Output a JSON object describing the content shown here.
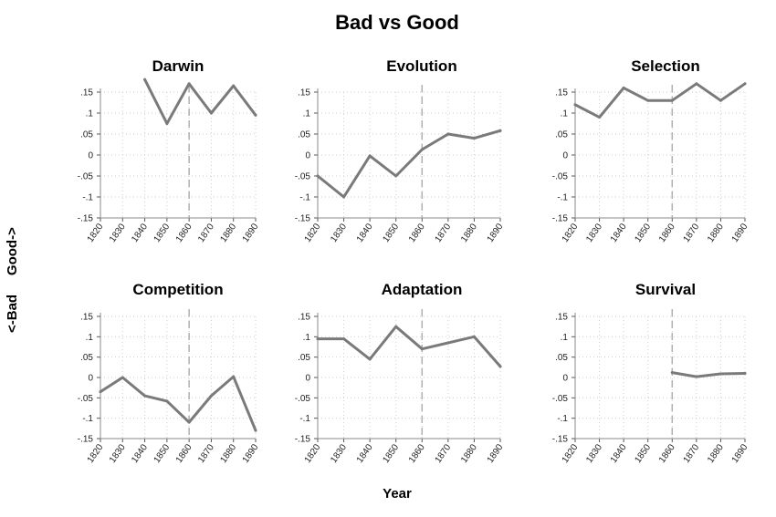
{
  "title": "Bad vs Good",
  "ylabel": "<-Bad     Good->",
  "xlabel": "Year",
  "chart_data": [
    {
      "type": "line",
      "title": "Darwin",
      "x": [
        1840,
        1850,
        1860,
        1870,
        1880,
        1890
      ],
      "values": [
        0.18,
        0.075,
        0.17,
        0.1,
        0.165,
        0.095
      ],
      "xticks": [
        "1820",
        "1830",
        "1840",
        "1850",
        "1860",
        "1870",
        "1880",
        "1890"
      ],
      "yticks": [
        ".15",
        ".1",
        ".05",
        "0",
        "-.05",
        "-.1",
        "-.15"
      ],
      "yrange": [
        -0.15,
        0.15
      ],
      "ylim": [
        -0.15,
        0.18
      ],
      "dashed_vline": 1860
    },
    {
      "type": "line",
      "title": "Evolution",
      "x": [
        1820,
        1830,
        1840,
        1850,
        1860,
        1870,
        1880,
        1890
      ],
      "values": [
        -0.05,
        -0.1,
        -0.002,
        -0.05,
        0.013,
        0.05,
        0.04,
        0.058
      ],
      "xticks": [
        "1820",
        "1830",
        "1840",
        "1850",
        "1860",
        "1870",
        "1880",
        "1890"
      ],
      "yticks": [
        ".15",
        ".1",
        ".05",
        "0",
        "-.05",
        "-.1",
        "-.15"
      ],
      "yrange": [
        -0.15,
        0.15
      ],
      "ylim": [
        -0.15,
        0.15
      ],
      "dashed_vline": 1860
    },
    {
      "type": "line",
      "title": "Selection",
      "x": [
        1820,
        1830,
        1840,
        1850,
        1860,
        1870,
        1880,
        1890
      ],
      "values": [
        0.12,
        0.09,
        0.16,
        0.13,
        0.13,
        0.17,
        0.13,
        0.17
      ],
      "xticks": [
        "1820",
        "1830",
        "1840",
        "1850",
        "1860",
        "1870",
        "1880",
        "1890"
      ],
      "yticks": [
        ".15",
        ".1",
        ".05",
        "0",
        "-.05",
        "-.1",
        "-.15"
      ],
      "yrange": [
        -0.15,
        0.15
      ],
      "ylim": [
        -0.15,
        0.175
      ],
      "dashed_vline": 1860
    },
    {
      "type": "line",
      "title": "Competition",
      "x": [
        1820,
        1830,
        1840,
        1850,
        1860,
        1870,
        1880,
        1890
      ],
      "values": [
        -0.035,
        0.0,
        -0.045,
        -0.058,
        -0.11,
        -0.045,
        0.002,
        -0.13
      ],
      "xticks": [
        "1820",
        "1830",
        "1840",
        "1850",
        "1860",
        "1870",
        "1880",
        "1890"
      ],
      "yticks": [
        ".15",
        ".1",
        ".05",
        "0",
        "-.05",
        "-.1",
        "-.15"
      ],
      "yrange": [
        -0.15,
        0.15
      ],
      "ylim": [
        -0.15,
        0.15
      ],
      "dashed_vline": 1860
    },
    {
      "type": "line",
      "title": "Adaptation",
      "x": [
        1820,
        1830,
        1840,
        1850,
        1860,
        1870,
        1880,
        1890
      ],
      "values": [
        0.095,
        0.095,
        0.045,
        0.125,
        0.07,
        0.085,
        0.1,
        0.027
      ],
      "xticks": [
        "1820",
        "1830",
        "1840",
        "1850",
        "1860",
        "1870",
        "1880",
        "1890"
      ],
      "yticks": [
        ".15",
        ".1",
        ".05",
        "0",
        "-.05",
        "-.1",
        "-.15"
      ],
      "yrange": [
        -0.15,
        0.15
      ],
      "ylim": [
        -0.15,
        0.15
      ],
      "dashed_vline": 1860
    },
    {
      "type": "line",
      "title": "Survival",
      "x": [
        1860,
        1870,
        1880,
        1890
      ],
      "values": [
        0.012,
        0.002,
        0.009,
        0.01
      ],
      "xticks": [
        "1820",
        "1830",
        "1840",
        "1850",
        "1860",
        "1870",
        "1880",
        "1890"
      ],
      "yticks": [
        ".15",
        ".1",
        ".05",
        "0",
        "-.05",
        "-.1",
        "-.15"
      ],
      "yrange": [
        -0.15,
        0.15
      ],
      "ylim": [
        -0.15,
        0.15
      ],
      "dashed_vline": 1860
    }
  ],
  "colors": {
    "line": "#7a7a7a",
    "grid": "#cfcfcf",
    "vline": "#b0b0b0"
  }
}
